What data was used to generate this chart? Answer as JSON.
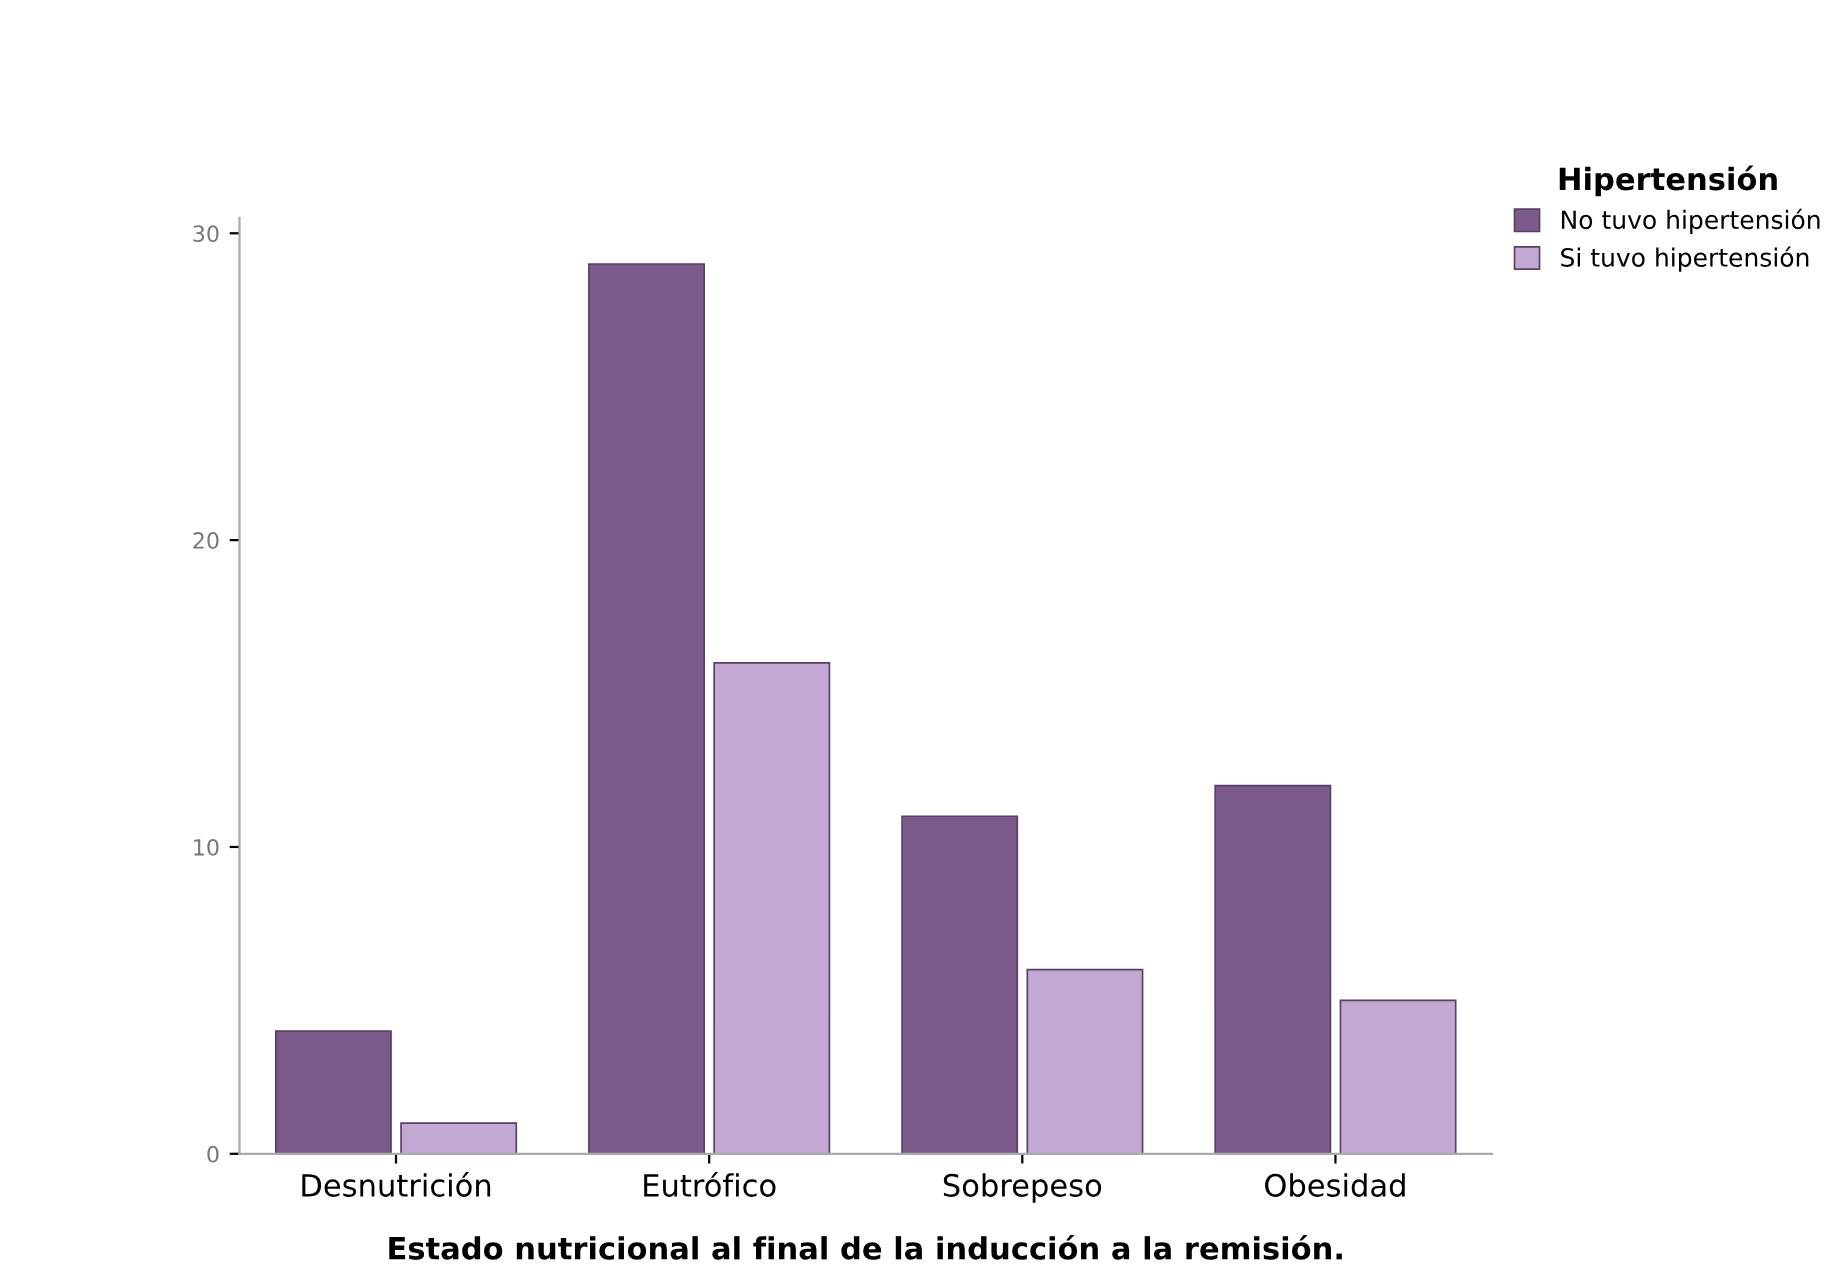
{
  "chart_data": {
    "type": "bar",
    "xlabel": "Estado nutricional al final de la inducción a la remisión.",
    "legend_title": "Hipertensión",
    "categories": [
      "Desnutrición",
      "Eutrófico",
      "Sobrepeso",
      "Obesidad"
    ],
    "series": [
      {
        "name": "No tuvo hipertensión",
        "color": "#7d5a8c",
        "values": [
          4,
          29,
          11,
          12
        ]
      },
      {
        "name": "Si tuvo hipertensión",
        "color": "#c4a8d4",
        "values": [
          1,
          16,
          6,
          5
        ]
      }
    ],
    "ylim": [
      0,
      30.5
    ],
    "yticks": [
      0,
      10,
      20,
      30
    ],
    "grid": false,
    "legend": "top right"
  }
}
